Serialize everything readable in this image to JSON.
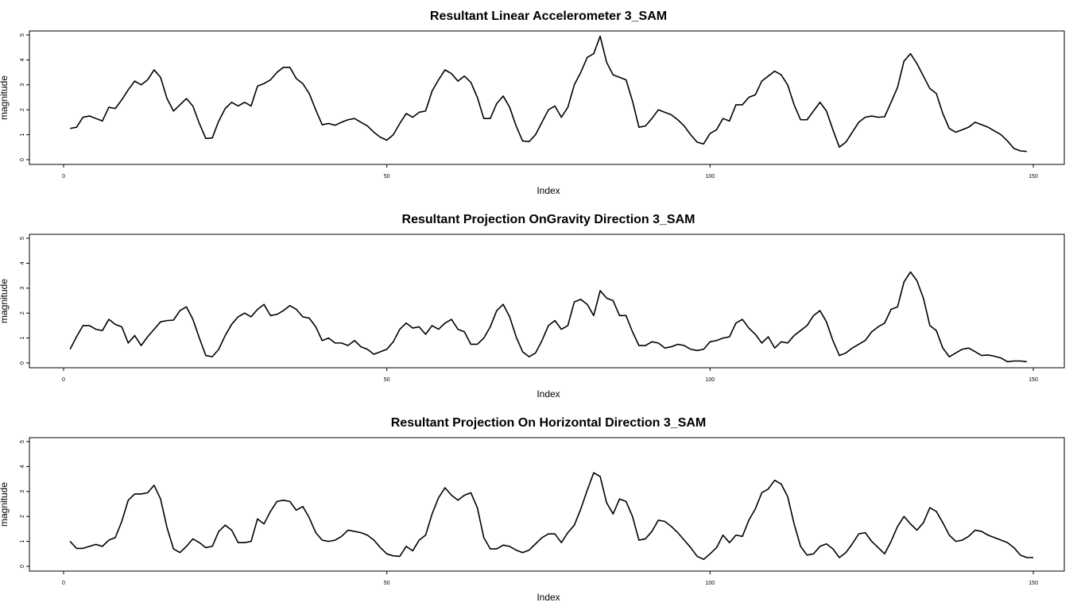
{
  "chart_data": [
    {
      "type": "line",
      "title": "Resultant Linear Accelerometer 3_SAM",
      "xlabel": "Index",
      "ylabel": "magnitude",
      "xlim": [
        0,
        150
      ],
      "ylim": [
        0,
        5
      ],
      "xticks": [
        0,
        50,
        100,
        150
      ],
      "yticks": [
        0,
        1,
        2,
        3,
        4,
        5
      ],
      "grid": false,
      "series": [
        {
          "x_start": 1,
          "values": [
            1.25,
            1.3,
            1.7,
            1.75,
            1.65,
            1.55,
            2.1,
            2.05,
            2.4,
            2.8,
            3.15,
            3.0,
            3.2,
            3.6,
            3.3,
            2.45,
            1.95,
            2.2,
            2.45,
            2.15,
            1.45,
            0.85,
            0.87,
            1.55,
            2.05,
            2.3,
            2.15,
            2.3,
            2.15,
            2.95,
            3.05,
            3.2,
            3.5,
            3.7,
            3.7,
            3.25,
            3.05,
            2.65,
            2.0,
            1.4,
            1.45,
            1.38,
            1.5,
            1.6,
            1.65,
            1.5,
            1.35,
            1.1,
            0.9,
            0.78,
            1.0,
            1.45,
            1.85,
            1.7,
            1.9,
            1.95,
            2.75,
            3.2,
            3.6,
            3.45,
            3.15,
            3.35,
            3.1,
            2.5,
            1.65,
            1.65,
            2.25,
            2.55,
            2.1,
            1.35,
            0.75,
            0.72,
            1.0,
            1.5,
            2.0,
            2.15,
            1.7,
            2.1,
            3.0,
            3.5,
            4.1,
            4.25,
            4.95,
            3.9,
            3.4,
            3.3,
            3.2,
            2.35,
            1.3,
            1.35,
            1.65,
            2.0,
            1.9,
            1.8,
            1.6,
            1.35,
            1.0,
            0.7,
            0.63,
            1.05,
            1.2,
            1.65,
            1.55,
            2.2,
            2.2,
            2.5,
            2.6,
            3.15,
            3.35,
            3.55,
            3.4,
            3.0,
            2.2,
            1.6,
            1.6,
            1.95,
            2.3,
            1.95,
            1.2,
            0.5,
            0.7,
            1.1,
            1.5,
            1.7,
            1.75,
            1.7,
            1.72,
            2.3,
            2.9,
            3.95,
            4.25,
            3.85,
            3.35,
            2.85,
            2.65,
            1.85,
            1.25,
            1.1,
            1.2,
            1.3,
            1.5,
            1.4,
            1.3,
            1.15,
            1.0,
            0.75,
            0.45,
            0.35,
            0.33
          ]
        }
      ]
    },
    {
      "type": "line",
      "title": "Resultant Projection OnGravity Direction 3_SAM",
      "xlabel": "Index",
      "ylabel": "magnitude",
      "xlim": [
        0,
        150
      ],
      "ylim": [
        0,
        5
      ],
      "xticks": [
        0,
        50,
        100,
        150
      ],
      "yticks": [
        0,
        1,
        2,
        3,
        4,
        5
      ],
      "grid": false,
      "series": [
        {
          "x_start": 1,
          "values": [
            0.55,
            1.05,
            1.5,
            1.5,
            1.35,
            1.3,
            1.75,
            1.55,
            1.45,
            0.8,
            1.1,
            0.7,
            1.05,
            1.35,
            1.65,
            1.7,
            1.72,
            2.1,
            2.25,
            1.75,
            1.0,
            0.3,
            0.25,
            0.55,
            1.1,
            1.55,
            1.85,
            2.0,
            1.85,
            2.15,
            2.35,
            1.9,
            1.95,
            2.1,
            2.3,
            2.15,
            1.85,
            1.8,
            1.45,
            0.9,
            1.0,
            0.8,
            0.8,
            0.7,
            0.9,
            0.65,
            0.55,
            0.35,
            0.45,
            0.55,
            0.85,
            1.35,
            1.6,
            1.4,
            1.45,
            1.15,
            1.5,
            1.35,
            1.6,
            1.75,
            1.35,
            1.25,
            0.75,
            0.75,
            1.0,
            1.45,
            2.1,
            2.35,
            1.85,
            1.05,
            0.45,
            0.25,
            0.4,
            0.9,
            1.5,
            1.7,
            1.35,
            1.5,
            2.45,
            2.55,
            2.35,
            1.9,
            2.9,
            2.6,
            2.5,
            1.9,
            1.9,
            1.25,
            0.7,
            0.7,
            0.85,
            0.8,
            0.6,
            0.65,
            0.75,
            0.7,
            0.55,
            0.5,
            0.55,
            0.85,
            0.9,
            1.0,
            1.05,
            1.6,
            1.75,
            1.4,
            1.15,
            0.8,
            1.05,
            0.6,
            0.85,
            0.8,
            1.1,
            1.3,
            1.5,
            1.9,
            2.1,
            1.65,
            0.9,
            0.3,
            0.4,
            0.6,
            0.75,
            0.9,
            1.25,
            1.45,
            1.6,
            2.15,
            2.25,
            3.25,
            3.65,
            3.3,
            2.6,
            1.5,
            1.3,
            0.6,
            0.25,
            0.4,
            0.55,
            0.6,
            0.45,
            0.3,
            0.32,
            0.27,
            0.2,
            0.05,
            0.08,
            0.08,
            0.05
          ]
        }
      ]
    },
    {
      "type": "line",
      "title": "Resultant Projection On Horizontal Direction 3_SAM",
      "xlabel": "Index",
      "ylabel": "magnitude",
      "xlim": [
        0,
        150
      ],
      "ylim": [
        0,
        5
      ],
      "xticks": [
        0,
        50,
        100,
        150
      ],
      "yticks": [
        0,
        1,
        2,
        3,
        4,
        5
      ],
      "grid": false,
      "series": [
        {
          "x_start": 1,
          "values": [
            1.0,
            0.72,
            0.72,
            0.8,
            0.88,
            0.8,
            1.05,
            1.15,
            1.8,
            2.65,
            2.9,
            2.9,
            2.95,
            3.25,
            2.7,
            1.55,
            0.7,
            0.55,
            0.8,
            1.1,
            0.95,
            0.75,
            0.8,
            1.4,
            1.65,
            1.45,
            0.95,
            0.95,
            1.0,
            1.9,
            1.7,
            2.2,
            2.6,
            2.65,
            2.6,
            2.25,
            2.4,
            1.95,
            1.35,
            1.05,
            1.0,
            1.05,
            1.2,
            1.45,
            1.4,
            1.35,
            1.25,
            1.05,
            0.75,
            0.5,
            0.42,
            0.4,
            0.8,
            0.62,
            1.05,
            1.25,
            2.1,
            2.75,
            3.15,
            2.85,
            2.65,
            2.85,
            2.95,
            2.35,
            1.15,
            0.7,
            0.7,
            0.85,
            0.8,
            0.65,
            0.55,
            0.65,
            0.9,
            1.15,
            1.3,
            1.3,
            0.95,
            1.35,
            1.65,
            2.3,
            3.05,
            3.75,
            3.6,
            2.55,
            2.1,
            2.7,
            2.6,
            2.0,
            1.05,
            1.1,
            1.4,
            1.85,
            1.8,
            1.6,
            1.35,
            1.05,
            0.75,
            0.4,
            0.28,
            0.5,
            0.75,
            1.25,
            0.95,
            1.25,
            1.2,
            1.85,
            2.3,
            2.95,
            3.1,
            3.45,
            3.3,
            2.8,
            1.7,
            0.8,
            0.45,
            0.5,
            0.8,
            0.9,
            0.7,
            0.35,
            0.55,
            0.9,
            1.3,
            1.35,
            1.0,
            0.75,
            0.5,
            1.0,
            1.6,
            2.0,
            1.7,
            1.45,
            1.75,
            2.35,
            2.2,
            1.75,
            1.25,
            1.0,
            1.05,
            1.2,
            1.45,
            1.4,
            1.25,
            1.15,
            1.05,
            0.95,
            0.75,
            0.45,
            0.35,
            0.35
          ]
        }
      ]
    }
  ]
}
